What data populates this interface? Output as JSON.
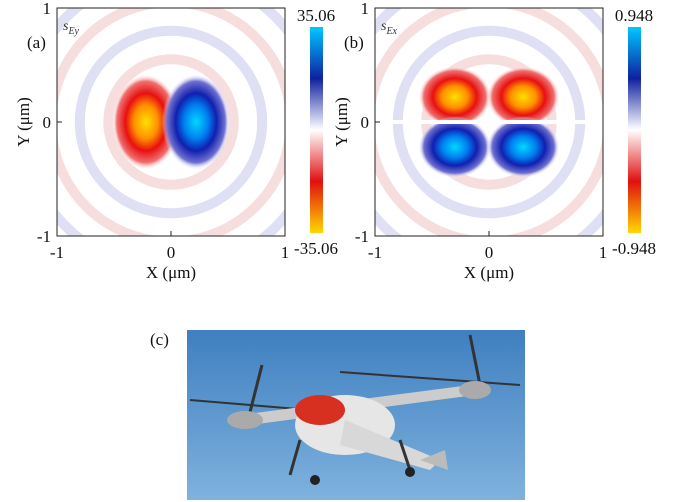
{
  "panels": [
    {
      "label": "(a)",
      "field": {
        "symbol": "s",
        "subscript": "Ey"
      },
      "colorbar": {
        "max": 35.06,
        "min": -35.06
      },
      "x_axis": {
        "label": "X (μm)",
        "ticks": [
          -1,
          0,
          1
        ]
      },
      "y_axis": {
        "label": "Y (μm)",
        "ticks": [
          -1,
          0,
          1
        ]
      }
    },
    {
      "label": "(b)",
      "field": {
        "symbol": "s",
        "subscript": "Ex"
      },
      "colorbar": {
        "max": 0.948,
        "min": -0.948
      },
      "x_axis": {
        "label": "X (μm)",
        "ticks": [
          -1,
          0,
          1
        ]
      },
      "y_axis": {
        "label": "Y (μm)",
        "ticks": [
          -1,
          0,
          1
        ]
      }
    }
  ],
  "photo": {
    "label": "(c)"
  }
}
